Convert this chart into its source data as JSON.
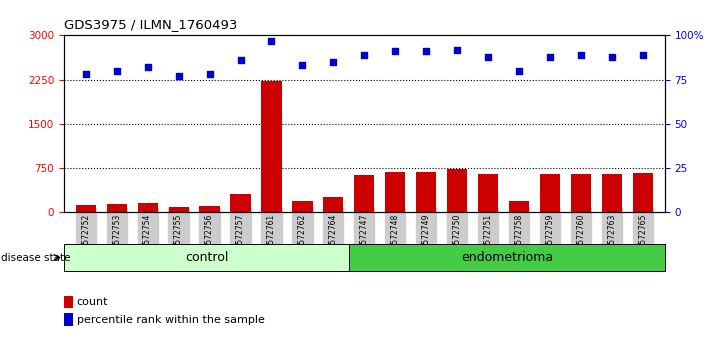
{
  "title": "GDS3975 / ILMN_1760493",
  "samples": [
    "GSM572752",
    "GSM572753",
    "GSM572754",
    "GSM572755",
    "GSM572756",
    "GSM572757",
    "GSM572761",
    "GSM572762",
    "GSM572764",
    "GSM572747",
    "GSM572748",
    "GSM572749",
    "GSM572750",
    "GSM572751",
    "GSM572758",
    "GSM572759",
    "GSM572760",
    "GSM572763",
    "GSM572765"
  ],
  "counts": [
    120,
    140,
    160,
    100,
    105,
    310,
    2230,
    200,
    260,
    640,
    690,
    680,
    730,
    650,
    200,
    650,
    650,
    650,
    660
  ],
  "percentiles": [
    78,
    80,
    82,
    77,
    78,
    86,
    97,
    83,
    85,
    89,
    91,
    91,
    92,
    88,
    80,
    88,
    89,
    88,
    89
  ],
  "n_control": 9,
  "n_endometrioma": 10,
  "bar_color": "#cc0000",
  "scatter_color": "#0000cc",
  "ylim_left": [
    0,
    3000
  ],
  "ylim_right": [
    0,
    100
  ],
  "yticks_left": [
    0,
    750,
    1500,
    2250,
    3000
  ],
  "yticks_right": [
    0,
    25,
    50,
    75,
    100
  ],
  "ytick_labels_left": [
    "0",
    "750",
    "1500",
    "2250",
    "3000"
  ],
  "ytick_labels_right": [
    "0",
    "25",
    "50",
    "75",
    "100%"
  ],
  "hlines": [
    750,
    1500,
    2250
  ],
  "control_label": "control",
  "endometrioma_label": "endometrioma",
  "disease_state_label": "disease state",
  "legend_count_label": "count",
  "legend_percentile_label": "percentile rank within the sample",
  "bg_color": "#ffffff",
  "plot_bg_color": "#ffffff",
  "control_bg": "#ccffcc",
  "endo_bg": "#44cc44",
  "tick_bg": "#cccccc"
}
